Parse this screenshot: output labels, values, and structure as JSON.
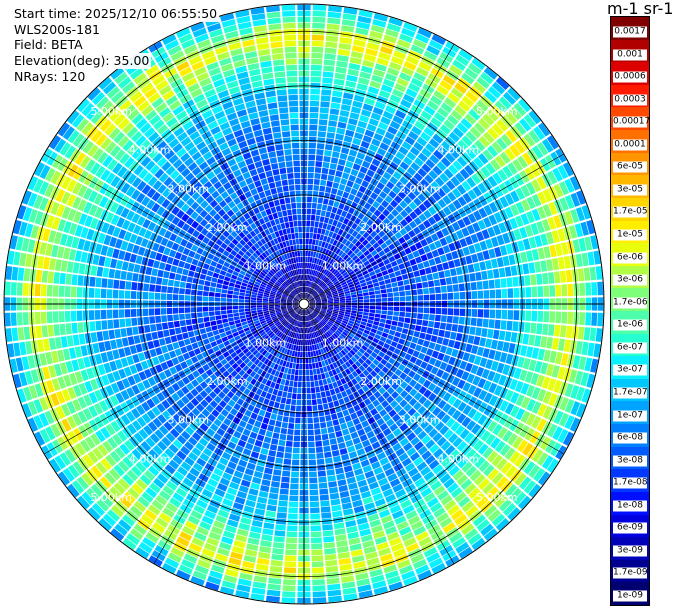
{
  "info": {
    "start_time": "Start time: 2025/12/10 06:55:50",
    "instrument": "WLS200s-181",
    "field": "Field: BETA",
    "elevation": "Elevation(deg): 35.00",
    "nrays": "NRays: 120"
  },
  "colorbar": {
    "title": "m-1 sr-1",
    "levels": [
      "0.0017",
      "0.001",
      "0.0006",
      "0.0003",
      "0.00017",
      "0.0001",
      "6e-05",
      "3e-05",
      "1.7e-05",
      "1e-05",
      "6e-06",
      "3e-06",
      "1.7e-06",
      "1e-06",
      "6e-07",
      "3e-07",
      "1.7e-07",
      "1e-07",
      "6e-08",
      "3e-08",
      "1.7e-08",
      "1e-08",
      "6e-09",
      "3e-09",
      "1.7e-09",
      "1e-09"
    ],
    "colors": [
      "#800000",
      "#b00000",
      "#dd0000",
      "#ff1a00",
      "#ff4800",
      "#ff7000",
      "#ff9500",
      "#ffb700",
      "#ffd500",
      "#ffee00",
      "#e8ff0e",
      "#b0ff46",
      "#7dff7a",
      "#4dffaa",
      "#25ffd2",
      "#0bf0ff",
      "#00c8ff",
      "#00a4ff",
      "#0080ff",
      "#005cff",
      "#0038ff",
      "#0010ff",
      "#0000e0",
      "#0000b8",
      "#000090",
      "#000070"
    ]
  },
  "chart_data": {
    "type": "heatmap",
    "projection": "polar (PPI)",
    "field": "BETA",
    "units": "m-1 sr-1",
    "scale": "log",
    "value_range": [
      1e-09,
      0.0017
    ],
    "nrays": 120,
    "elevation_deg": 35.0,
    "max_range_km": 5.5,
    "range_rings_km": [
      1,
      2,
      3,
      4,
      5
    ],
    "range_ring_labels": [
      "1.00km",
      "2.00km",
      "3.00km",
      "4.00km",
      "5.00km"
    ],
    "radial_profile": [
      {
        "range_km": 0.0,
        "beta": 1e-09
      },
      {
        "range_km": 1.0,
        "beta": 1.5e-08
      },
      {
        "range_km": 2.0,
        "beta": 3e-08
      },
      {
        "range_km": 3.0,
        "beta": 6e-08
      },
      {
        "range_km": 3.8,
        "beta": 1.5e-07
      },
      {
        "range_km": 4.5,
        "beta": 1e-06
      },
      {
        "range_km": 4.9,
        "beta": 6e-06
      },
      {
        "range_km": 5.5,
        "beta": 1e-07
      }
    ]
  }
}
